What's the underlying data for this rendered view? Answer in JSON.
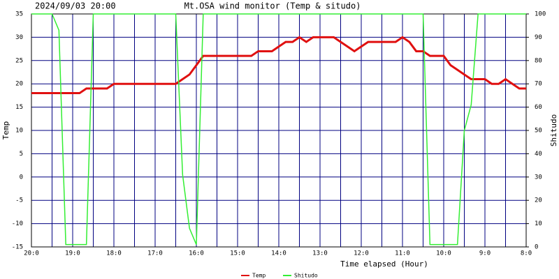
{
  "chart_data": {
    "type": "line",
    "date": "2024/09/03 20:00",
    "title": "Mt.OSA wind monitor (Temp & situdo)",
    "xlabel": "Time elapsed (Hour)",
    "ylabel": "Temp",
    "y2label": "Shitudo",
    "x": [
      0,
      10,
      20,
      30,
      40,
      50,
      60,
      70,
      80,
      90,
      100,
      110,
      120,
      130,
      140,
      150,
      160,
      170,
      180,
      190,
      200,
      210,
      220,
      230,
      240,
      250,
      260,
      270,
      280,
      290,
      300,
      310,
      320,
      330,
      340,
      350,
      360,
      370,
      380,
      390,
      400,
      410,
      420,
      430,
      440,
      450,
      460,
      470,
      480,
      490,
      500,
      510,
      520,
      530,
      540,
      550,
      560,
      570,
      580,
      590,
      600,
      610,
      620,
      630,
      640,
      650,
      660,
      670,
      680,
      690,
      700,
      710,
      720
    ],
    "xlim": [
      0,
      720
    ],
    "xticks": [
      {
        "value": 0,
        "label": "20:0"
      },
      {
        "value": 30,
        "label": null
      },
      {
        "value": 60,
        "label": "19:0"
      },
      {
        "value": 90,
        "label": null
      },
      {
        "value": 120,
        "label": "18:0"
      },
      {
        "value": 150,
        "label": null
      },
      {
        "value": 180,
        "label": "17:0"
      },
      {
        "value": 210,
        "label": null
      },
      {
        "value": 240,
        "label": "16:0"
      },
      {
        "value": 270,
        "label": null
      },
      {
        "value": 300,
        "label": "15:0"
      },
      {
        "value": 330,
        "label": null
      },
      {
        "value": 360,
        "label": "14:0"
      },
      {
        "value": 390,
        "label": null
      },
      {
        "value": 420,
        "label": "13:0"
      },
      {
        "value": 450,
        "label": null
      },
      {
        "value": 480,
        "label": "12:0"
      },
      {
        "value": 510,
        "label": null
      },
      {
        "value": 540,
        "label": "11:0"
      },
      {
        "value": 570,
        "label": null
      },
      {
        "value": 600,
        "label": "10:0"
      },
      {
        "value": 630,
        "label": null
      },
      {
        "value": 660,
        "label": "9:0"
      },
      {
        "value": 690,
        "label": null
      },
      {
        "value": 720,
        "label": "8:0"
      }
    ],
    "ylim": [
      -15,
      35
    ],
    "yticks": [
      -15,
      -10,
      -5,
      0,
      5,
      10,
      15,
      20,
      25,
      30,
      35
    ],
    "y2lim": [
      0,
      100
    ],
    "y2ticks": [
      0,
      10,
      20,
      30,
      40,
      50,
      60,
      70,
      80,
      90,
      100
    ],
    "grid": true,
    "series": [
      {
        "name": "Temp",
        "color": "#e01010",
        "values": [
          18,
          18,
          18,
          18,
          18,
          18,
          18,
          18,
          19,
          19,
          19,
          19,
          20,
          20,
          20,
          20,
          20,
          20,
          20,
          20,
          20,
          20,
          21,
          22,
          24,
          26,
          26,
          26,
          26,
          26,
          26,
          26,
          26,
          27,
          27,
          27,
          28,
          29,
          29,
          30,
          29,
          30,
          30,
          30,
          30,
          29,
          28,
          27,
          28,
          29,
          29,
          29,
          29,
          29,
          30,
          29,
          27,
          27,
          26,
          26,
          26,
          24,
          23,
          22,
          21,
          21,
          21,
          20,
          20,
          21,
          20,
          19,
          19
        ]
      },
      {
        "name": "Shitudo",
        "color": "#33ee33",
        "axis": "y2",
        "values": [
          100,
          100,
          100,
          100,
          93,
          1,
          1,
          1,
          1,
          100,
          100,
          100,
          100,
          100,
          100,
          100,
          100,
          100,
          100,
          100,
          100,
          100,
          31,
          8,
          1,
          100,
          100,
          100,
          100,
          100,
          100,
          100,
          100,
          100,
          100,
          100,
          100,
          100,
          100,
          100,
          100,
          100,
          100,
          100,
          100,
          100,
          100,
          100,
          100,
          100,
          100,
          100,
          100,
          100,
          100,
          100,
          100,
          100,
          1,
          1,
          1,
          1,
          1,
          50,
          61,
          100,
          100,
          100,
          100,
          100,
          100,
          100,
          100
        ]
      }
    ]
  }
}
